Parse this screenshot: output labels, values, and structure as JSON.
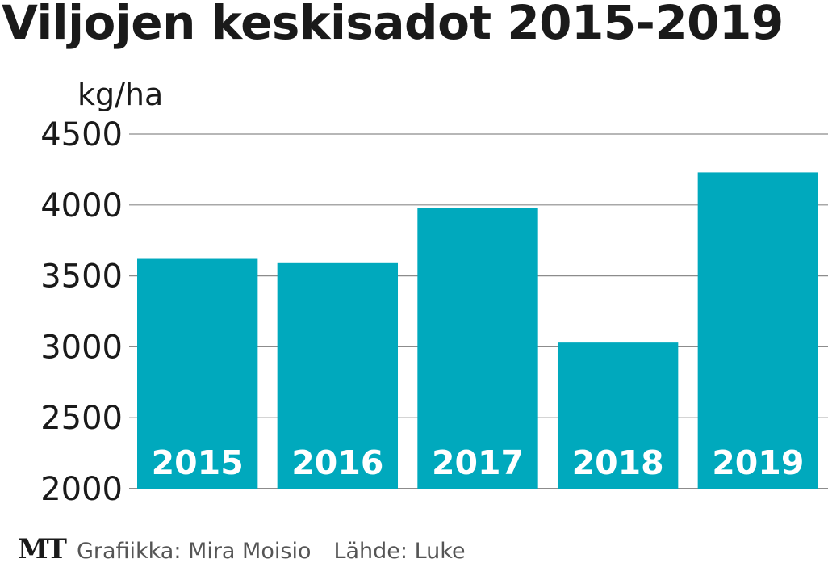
{
  "title": "Viljojen keskisadot 2015-2019",
  "footer": {
    "logo": "MT",
    "credit": "Grafiikka: Mira Moisio",
    "source": "Lähde: Luke"
  },
  "colors": {
    "bar": "#00a9bd",
    "bar_label": "#ffffff",
    "grid": "#8c8c8c",
    "text": "#1a1a1a"
  },
  "chart_data": {
    "type": "bar",
    "title": "Viljojen keskisadot 2015-2019",
    "ylabel": "kg/ha",
    "xlabel": "",
    "categories": [
      "2015",
      "2016",
      "2017",
      "2018",
      "2019"
    ],
    "values": [
      3620,
      3590,
      3980,
      3030,
      4230
    ],
    "ylim": [
      2000,
      4500
    ],
    "yticks": [
      2000,
      2500,
      3000,
      3500,
      4000,
      4500
    ],
    "ytick_labels": [
      "2000",
      "2500",
      "3000",
      "3500",
      "4000",
      "4500"
    ],
    "grid": true,
    "legend": "none",
    "category_labels_inside_bars": true
  }
}
